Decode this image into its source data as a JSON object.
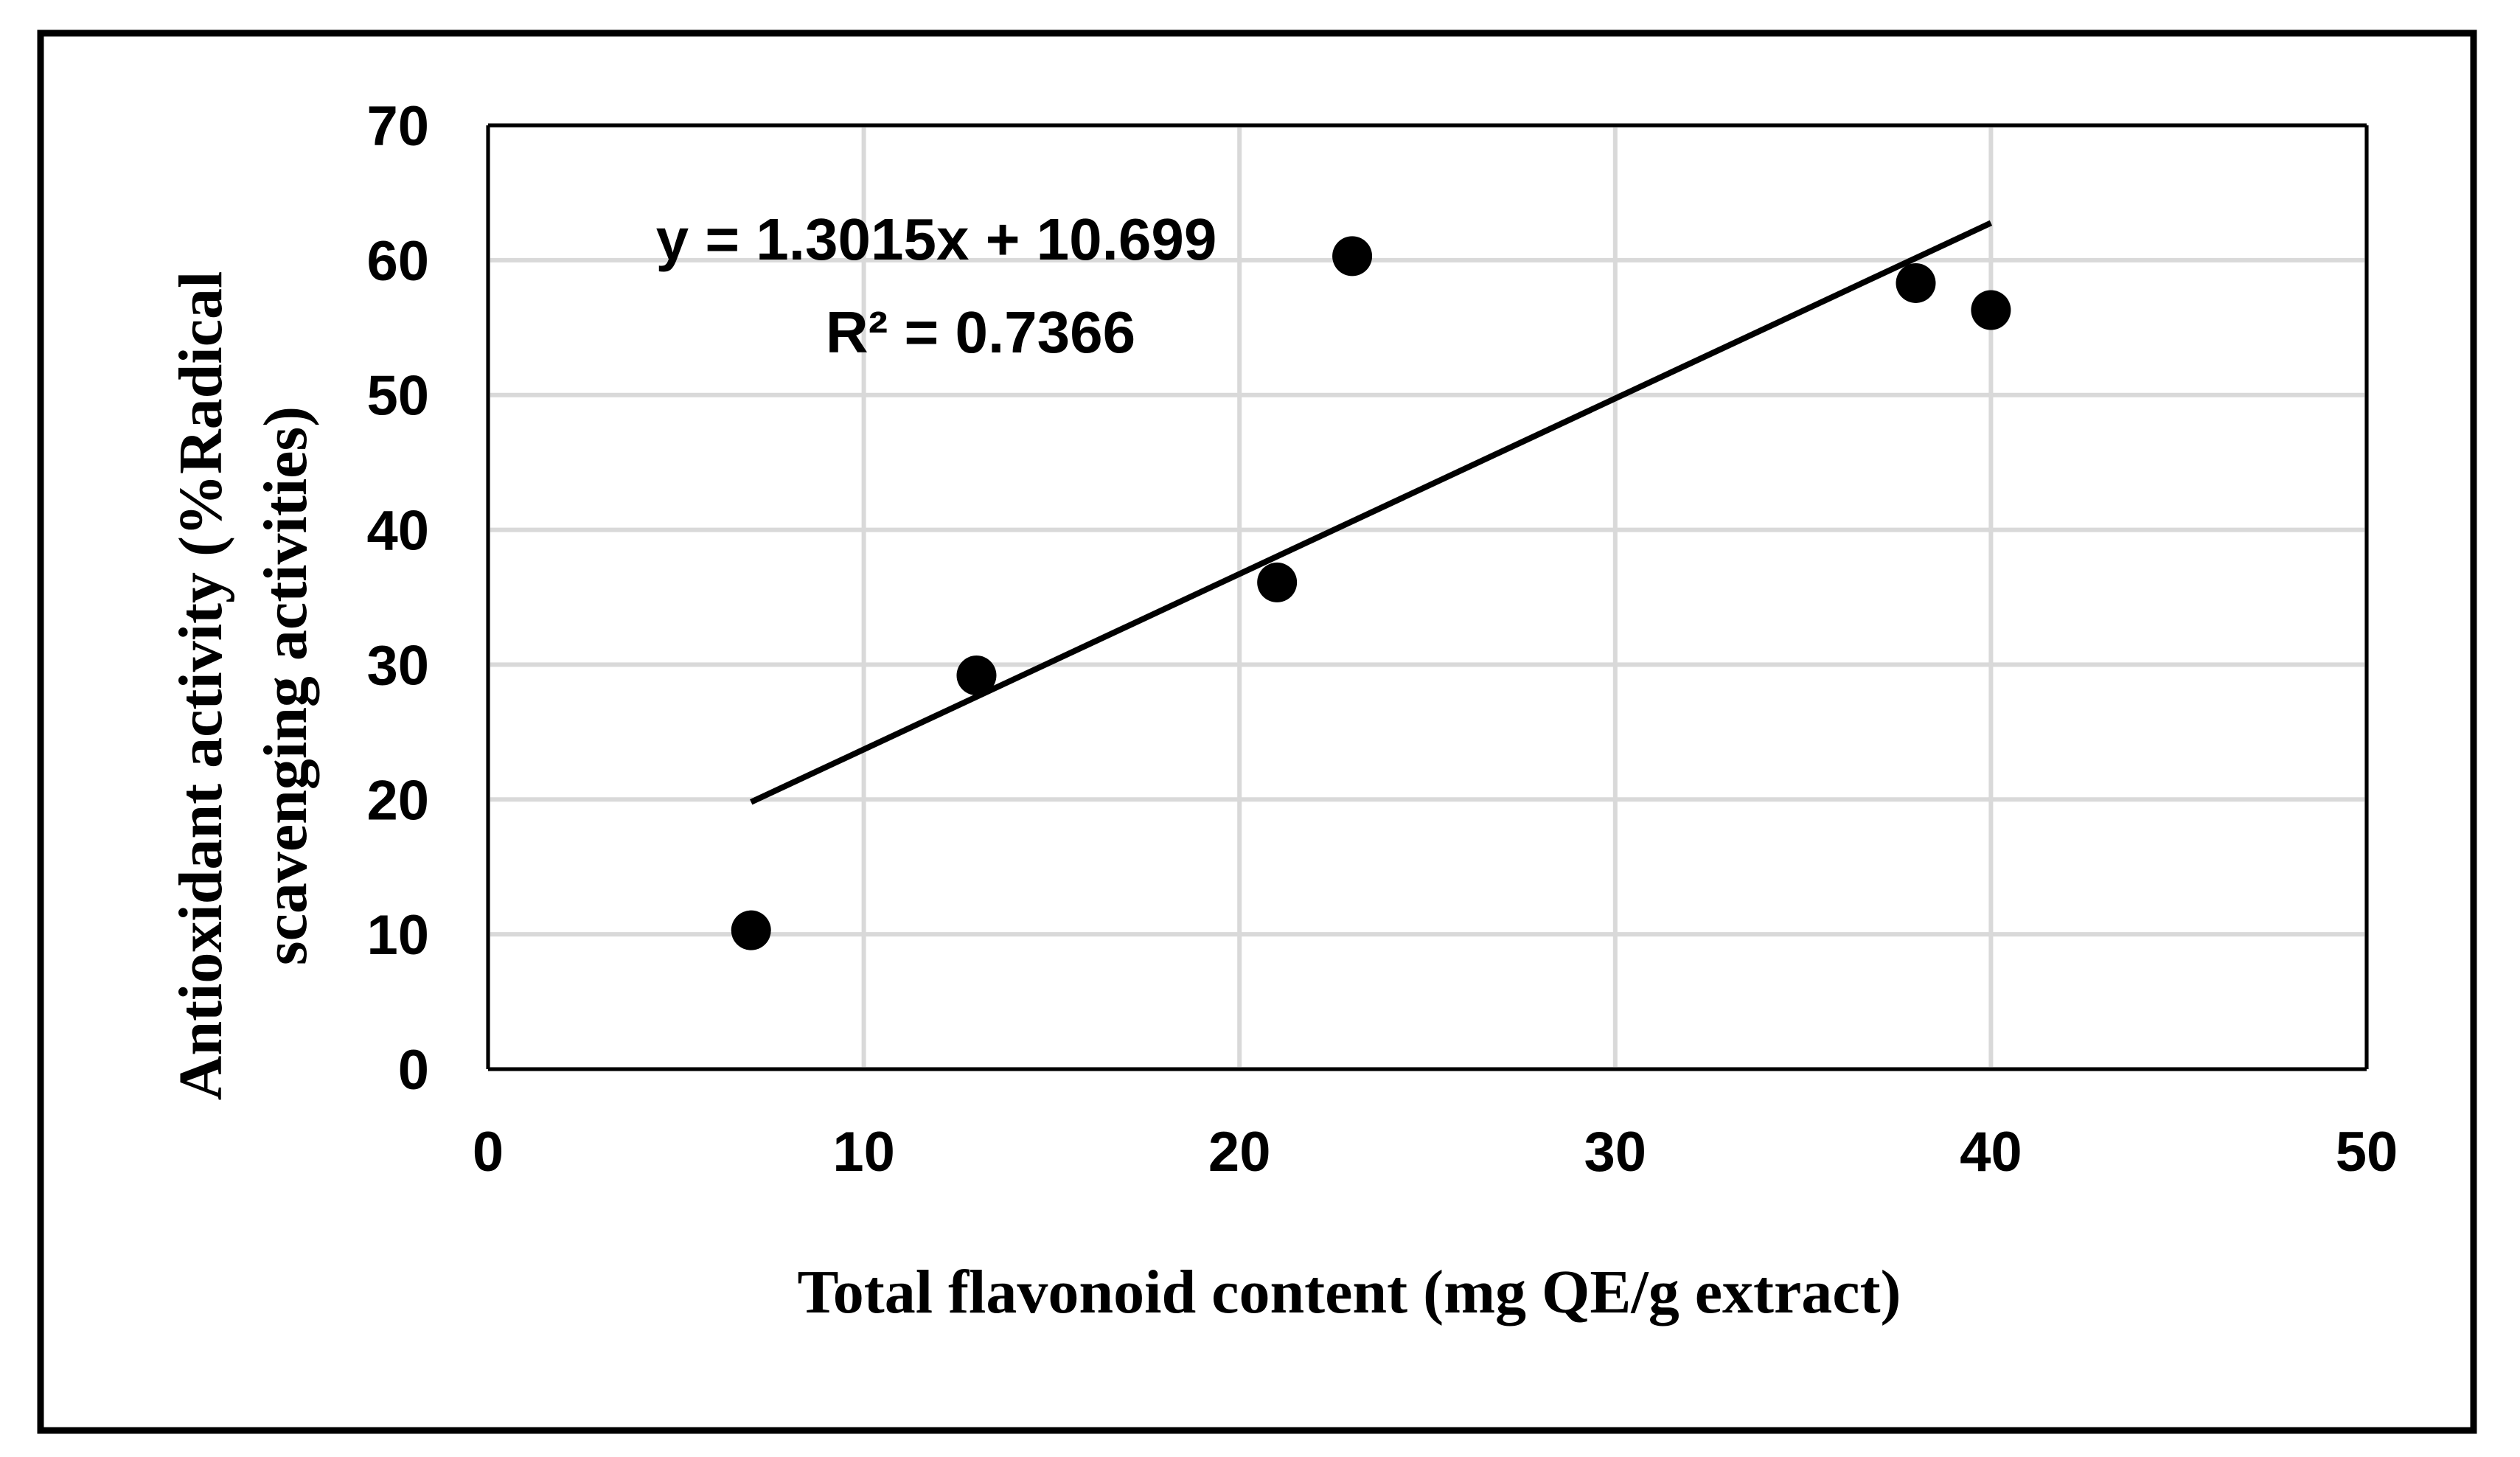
{
  "chart_data": {
    "type": "scatter",
    "title": "",
    "xlabel": "Total flavonoid content (mg QE/g extract)",
    "ylabel_lines": [
      "Antioxidant  activity (%Radical",
      "scavenging activities)"
    ],
    "xlim": [
      0,
      50
    ],
    "ylim": [
      0,
      70
    ],
    "x_ticks": [
      0,
      10,
      20,
      30,
      40,
      50
    ],
    "y_ticks": [
      0,
      10,
      20,
      30,
      40,
      50,
      60,
      70
    ],
    "grid": true,
    "legend": "none",
    "series": [
      {
        "points": [
          {
            "x": 7,
            "y": 10.3
          },
          {
            "x": 13,
            "y": 29.2
          },
          {
            "x": 21,
            "y": 36.1
          },
          {
            "x": 23,
            "y": 60.3
          },
          {
            "x": 38,
            "y": 58.3
          },
          {
            "x": 40,
            "y": 56.3
          }
        ]
      }
    ],
    "trendline": {
      "slope": 1.3015,
      "intercept": 10.699,
      "x_range": [
        7,
        40
      ],
      "equation_text": "y = 1.3015x + 10.699",
      "r2_text": "R² = 0.7366"
    },
    "colors": {
      "marker": "#000000",
      "trendline": "#000000",
      "grid": "#d9d9d9",
      "axis": "#000000",
      "frame": "#000000"
    }
  }
}
